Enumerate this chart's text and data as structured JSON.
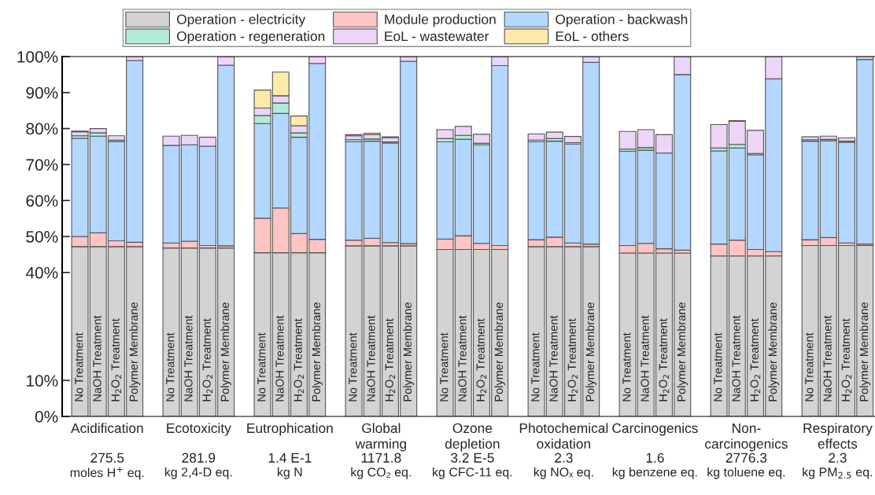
{
  "chart_data": {
    "type": "bar",
    "stacked": true,
    "legend": "top",
    "categories": [
      "No Treatment",
      "NaOH Treatment",
      "H$_{2}$O$_{2}$ Treatment",
      "Polymer Membrane",
      null,
      "No Treatment",
      "NaOH Treatment",
      "H$_{2}$O$_{2}$ Treatment",
      "Polymer Membrane",
      null,
      "No Treatment",
      "NaOH Treatment",
      "H$_{2}$O$_{2}$ Treatment",
      "Polymer Membrane",
      null,
      "No Treatment",
      "NaOH Treatment",
      "H$_{2}$O$_{2}$ Treatment",
      "Polymer Membrane",
      null,
      "No Treatment",
      "NaOH Treatment",
      "H$_{2}$O$_{2}$ Treatment",
      "Polymer Membrane",
      null,
      "No Treatment",
      "NaOH Treatment",
      "H$_{2}$O$_{2}$ Treatment",
      "Polymer Membrane",
      null,
      "No Treatment",
      "NaOH Treatment",
      "H$_{2}$O$_{2}$ Treatment",
      "Polymer Membrane",
      null,
      "No Treatment",
      "NaOH Treatment",
      "H$_{2}$O$_{2}$ Treatment",
      "Polymer Membrane",
      null,
      "No Treatment",
      "NaOH Treatment",
      "H$_{2}$O$_{2}$ Treatment",
      "Polymer Membrane"
    ],
    "ylim": [
      0,
      100
    ],
    "yticks": [
      {
        "value": 0,
        "label": "0%"
      },
      {
        "value": 10,
        "label": "10%"
      },
      {
        "value": 40,
        "label": "40%"
      },
      {
        "value": 50,
        "label": "50%"
      },
      {
        "value": 60,
        "label": "60%"
      },
      {
        "value": 70,
        "label": "70%"
      },
      {
        "value": 80,
        "label": "80%"
      },
      {
        "value": 90,
        "label": "90%"
      },
      {
        "value": 100,
        "label": "100%"
      }
    ],
    "series": [
      {
        "name": "Operation - electricity",
        "color": "#d3d3d3",
        "values": [
          47.2,
          47.2,
          47.2,
          47.2,
          null,
          46.8,
          46.8,
          46.8,
          46.8,
          null,
          45.5,
          45.5,
          45.5,
          45.5,
          null,
          47.4,
          47.4,
          47.4,
          47.4,
          null,
          46.4,
          46.4,
          46.4,
          46.4,
          null,
          47.2,
          47.2,
          47.2,
          47.2,
          null,
          45.4,
          45.4,
          45.4,
          45.4,
          null,
          44.6,
          44.6,
          44.6,
          44.6,
          null,
          47.5,
          47.5,
          47.5,
          47.5
        ]
      },
      {
        "name": "Module production",
        "color": "#ffc4c4",
        "values": [
          2.8,
          3.8,
          1.6,
          1.2,
          null,
          1.4,
          1.9,
          0.7,
          0.6,
          null,
          9.6,
          12.4,
          5.3,
          3.7,
          null,
          1.6,
          2.1,
          0.9,
          0.6,
          null,
          2.9,
          3.8,
          1.7,
          1.1,
          null,
          1.9,
          2.6,
          1.0,
          0.7,
          null,
          2.1,
          2.7,
          1.2,
          0.8,
          null,
          3.3,
          4.4,
          1.8,
          1.2,
          null,
          1.6,
          2.2,
          0.7,
          0.4
        ]
      },
      {
        "name": "Operation - backwash",
        "color": "#b3d7ff",
        "values": [
          27.3,
          26.9,
          27.6,
          50.5,
          null,
          27.1,
          26.8,
          27.6,
          50.2,
          null,
          26.3,
          26.3,
          26.8,
          48.9,
          null,
          27.3,
          27.0,
          27.7,
          50.7,
          null,
          27.0,
          26.8,
          27.4,
          50.0,
          null,
          27.2,
          26.7,
          27.5,
          50.5,
          null,
          26.2,
          25.9,
          26.6,
          48.8,
          null,
          25.9,
          25.6,
          26.3,
          48.0,
          null,
          27.4,
          26.9,
          28.0,
          51.3
        ]
      },
      {
        "name": "Operation - regeneration",
        "color": "#b3ecd6",
        "values": [
          0.7,
          0.9,
          0.4,
          null,
          null,
          null,
          null,
          null,
          null,
          null,
          2.2,
          2.9,
          1.2,
          null,
          null,
          0.6,
          0.6,
          0.3,
          null,
          null,
          0.9,
          1.1,
          0.4,
          null,
          null,
          0.5,
          0.7,
          0.4,
          null,
          null,
          0.6,
          0.7,
          null,
          null,
          null,
          0.8,
          1.0,
          0.4,
          null,
          null,
          0.4,
          0.4,
          0.3,
          null
        ]
      },
      {
        "name": "EoL - wastewater",
        "color": "#ecd5f7",
        "values": [
          1.1,
          1.2,
          1.2,
          1.1,
          null,
          2.6,
          2.6,
          2.5,
          2.4,
          null,
          2.1,
          2.0,
          2.0,
          1.9,
          null,
          1.1,
          1.2,
          1.2,
          1.3,
          null,
          2.5,
          2.5,
          2.5,
          2.5,
          null,
          1.7,
          1.8,
          1.7,
          1.6,
          null,
          4.9,
          5.0,
          5.1,
          5.0,
          null,
          6.5,
          6.4,
          6.4,
          6.2,
          null,
          0.8,
          0.9,
          0.9,
          0.8
        ]
      },
      {
        "name": "EoL - others",
        "color": "#fdeaa8",
        "values": [
          0.2,
          null,
          null,
          null,
          null,
          null,
          null,
          null,
          null,
          null,
          5.0,
          6.6,
          2.7,
          null,
          null,
          0.3,
          0.4,
          0.2,
          null,
          null,
          null,
          null,
          null,
          null,
          null,
          null,
          null,
          null,
          null,
          null,
          null,
          null,
          null,
          null,
          null,
          null,
          0.2,
          null,
          null,
          null,
          null,
          null,
          null,
          null
        ]
      }
    ],
    "annotations": [
      "Acidification",
      "275.5",
      "moles H$^{+}$ eq.",
      "Ecotoxicity",
      "281.9",
      "kg 2,4-D eq.",
      "Eutrophication",
      "1.4 E-1",
      "kg N",
      "Global\nwarming",
      "1171.8",
      "kg CO₂ eq.",
      "Ozone\ndepletion",
      "3.2 E-5",
      "kg CFC-11 eq.",
      "Photochemical\noxidation",
      "2.3",
      "kg NOₓ eq.",
      "Carcinogenics",
      "1.6",
      "kg benzene eq.",
      "Non-\ncarcinogenics",
      "2776.3",
      "kg toluene eq.",
      "Respiratory\neffects",
      "2.3",
      "kg PM$_{2.5}$ eq."
    ]
  }
}
